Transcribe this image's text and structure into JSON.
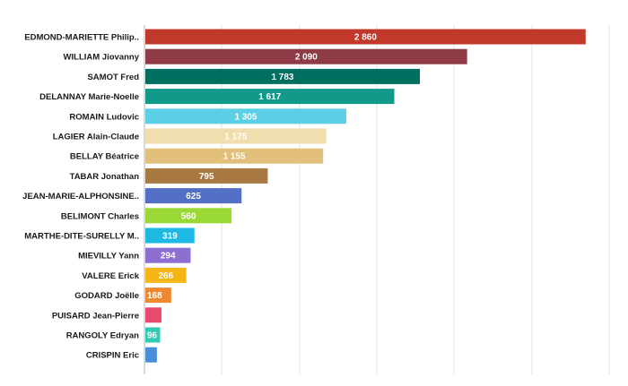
{
  "chart_data": {
    "type": "bar",
    "orientation": "horizontal",
    "categories": [
      "EDMOND-MARIETTE Philip..",
      "WILLIAM Jiovanny",
      "SAMOT Fred",
      "DELANNAY Marie-Noelle",
      "ROMAIN Ludovic",
      "LAGIER Alain-Claude",
      "BELLAY Béatrice",
      "TABAR Jonathan",
      "JEAN-MARIE-ALPHONSINE..",
      "BELIMONT Charles",
      "MARTHE-DITE-SURELLY M..",
      "MIEVILLY Yann",
      "VALERE Erick",
      "GODARD Joëlle",
      "PUISARD Jean-Pierre",
      "RANGOLY Edryan",
      "CRISPIN Eric"
    ],
    "values": [
      2860,
      2090,
      1783,
      1617,
      1305,
      1175,
      1155,
      795,
      625,
      560,
      319,
      294,
      266,
      168,
      105,
      96,
      75
    ],
    "value_labels": [
      "2 860",
      "2 090",
      "1 783",
      "1 617",
      "1 305",
      "1 175",
      "1 155",
      "795",
      "625",
      "560",
      "319",
      "294",
      "266",
      "168",
      "",
      "96",
      ""
    ],
    "colors": [
      "#c0392b",
      "#8e3b46",
      "#006f60",
      "#119a8a",
      "#5bcfe6",
      "#f1deaf",
      "#e2bf7b",
      "#a87940",
      "#5470c6",
      "#9ad835",
      "#1db9e3",
      "#8e6fd1",
      "#f4b515",
      "#ee8931",
      "#e84b6d",
      "#31cbb5",
      "#4a8ed9"
    ],
    "xlim": [
      0,
      3100
    ],
    "grid": true,
    "legend": "none",
    "title": "",
    "xlabel": "",
    "ylabel": ""
  }
}
